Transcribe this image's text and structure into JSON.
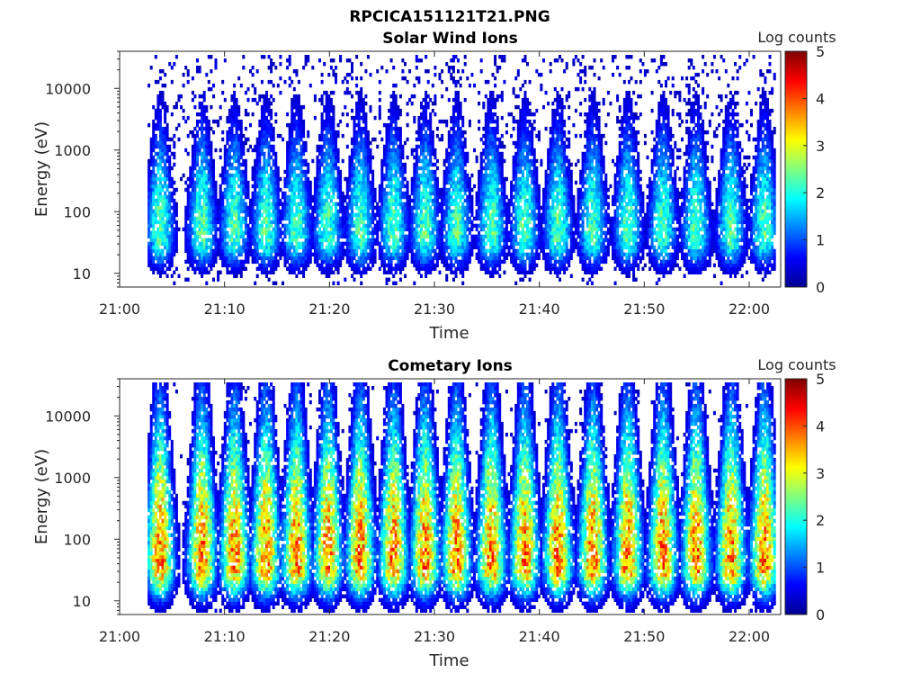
{
  "figure": {
    "title": "RPCICA151121T21.PNG",
    "palette": [
      "#00008f",
      "#0000ff",
      "#0080ff",
      "#00ffff",
      "#80ff80",
      "#ffff00",
      "#ff8000",
      "#ff0000",
      "#800000"
    ]
  },
  "chart_data": [
    {
      "type": "heatmap",
      "title": "Solar Wind Ions",
      "xlabel": "Time",
      "ylabel": "Energy (eV)",
      "yscale": "log",
      "xlim": [
        "21:00",
        "22:03"
      ],
      "ylim": [
        6,
        40000
      ],
      "xticks": [
        "21:00",
        "21:10",
        "21:20",
        "21:30",
        "21:40",
        "21:50",
        "22:00"
      ],
      "yticks": [
        "10",
        "100",
        "1000",
        "10000"
      ],
      "colorbar": {
        "label": "Log counts",
        "min": 0,
        "max": 5,
        "ticks": [
          "0",
          "1",
          "2",
          "3",
          "4",
          "5"
        ]
      },
      "burst_times": [
        "21:03:45",
        "21:07:45",
        "21:10:50",
        "21:13:50",
        "21:16:45",
        "21:19:45",
        "21:22:50",
        "21:26:00",
        "21:29:00",
        "21:32:00",
        "21:35:20",
        "21:38:30",
        "21:41:40",
        "21:45:00",
        "21:48:20",
        "21:51:40",
        "21:54:50",
        "21:58:10",
        "22:01:20"
      ],
      "burst_peak_log_counts": 2.3,
      "burst_peak_energy_eV": 40,
      "background_log_counts": 0.2
    },
    {
      "type": "heatmap",
      "title": "Cometary Ions",
      "xlabel": "Time",
      "ylabel": "Energy (eV)",
      "yscale": "log",
      "xlim": [
        "21:00",
        "22:03"
      ],
      "ylim": [
        6,
        40000
      ],
      "xticks": [
        "21:00",
        "21:10",
        "21:20",
        "21:30",
        "21:40",
        "21:50",
        "22:00"
      ],
      "yticks": [
        "10",
        "100",
        "1000",
        "10000"
      ],
      "colorbar": {
        "label": "Log counts",
        "min": 0,
        "max": 5,
        "ticks": [
          "0",
          "1",
          "2",
          "3",
          "4",
          "5"
        ]
      },
      "burst_times": [
        "21:03:45",
        "21:07:45",
        "21:10:50",
        "21:13:50",
        "21:16:45",
        "21:19:45",
        "21:22:50",
        "21:26:00",
        "21:29:00",
        "21:32:00",
        "21:35:20",
        "21:38:30",
        "21:41:40",
        "21:45:00",
        "21:48:20",
        "21:51:40",
        "21:54:50",
        "21:58:10",
        "22:01:20"
      ],
      "burst_peak_log_counts": 3.8,
      "burst_peak_energy_eV": 35,
      "background_log_counts": 0.1
    }
  ]
}
